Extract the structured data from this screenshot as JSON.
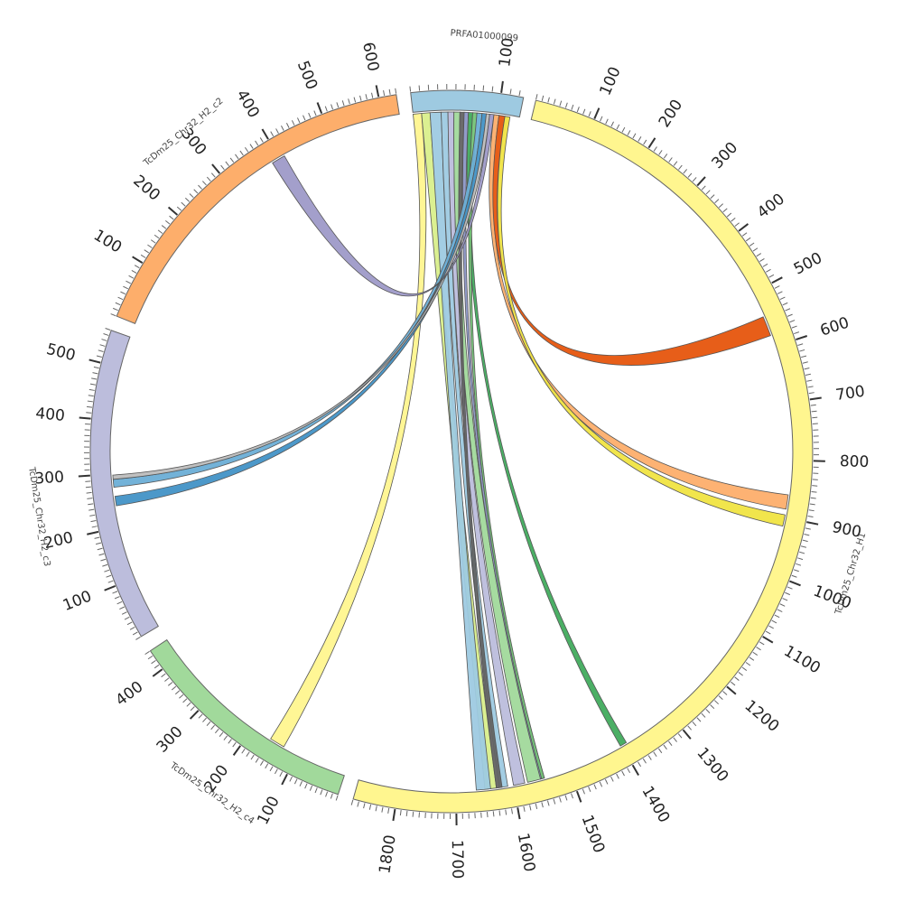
{
  "diagram": {
    "type": "circos",
    "segments": [
      {
        "id": "PRFA01000099",
        "label": "PRFA01000099",
        "color": "#9ecae1",
        "ticks": [
          100
        ],
        "minor_step": 10
      },
      {
        "id": "H1",
        "label": "TcDm25_Chr32_H1",
        "color": "#fff68f",
        "ticks": [
          100,
          200,
          300,
          400,
          500,
          600,
          700,
          800,
          900,
          1000,
          1100,
          1200,
          1300,
          1400,
          1500,
          1600,
          1700,
          1800
        ],
        "minor_step": 10
      },
      {
        "id": "c4",
        "label": "TcDm25_Chr32_H2_c4",
        "color": "#a1d99b",
        "ticks": [
          100,
          200,
          300,
          400
        ],
        "minor_step": 10
      },
      {
        "id": "c3",
        "label": "TcDm25_Chr32_H2_c3",
        "color": "#bcbddc",
        "ticks": [
          100,
          200,
          300,
          400,
          500
        ],
        "minor_step": 10
      },
      {
        "id": "c2",
        "label": "TcDm25_Chr32_H2_c2",
        "color": "#fdae6b",
        "ticks": [
          100,
          200,
          300,
          400,
          500,
          600
        ],
        "minor_step": 10
      }
    ],
    "links": [
      {
        "color": "#fff68f"
      },
      {
        "color": "#d9ef8b"
      },
      {
        "color": "#9ecae1"
      },
      {
        "color": "#9ecae1"
      },
      {
        "color": "#bcbddc"
      },
      {
        "color": "#a1d99b"
      },
      {
        "color": "#636363"
      },
      {
        "color": "#8c96c6"
      },
      {
        "color": "#41ab5d"
      },
      {
        "color": "#74c476"
      },
      {
        "color": "#6baed6"
      },
      {
        "color": "#4292c6"
      },
      {
        "color": "#bdbdbd"
      },
      {
        "color": "#9e9ac8"
      },
      {
        "color": "#fdae6b"
      },
      {
        "color": "#e6550d"
      },
      {
        "color": "#f0e442"
      }
    ]
  }
}
